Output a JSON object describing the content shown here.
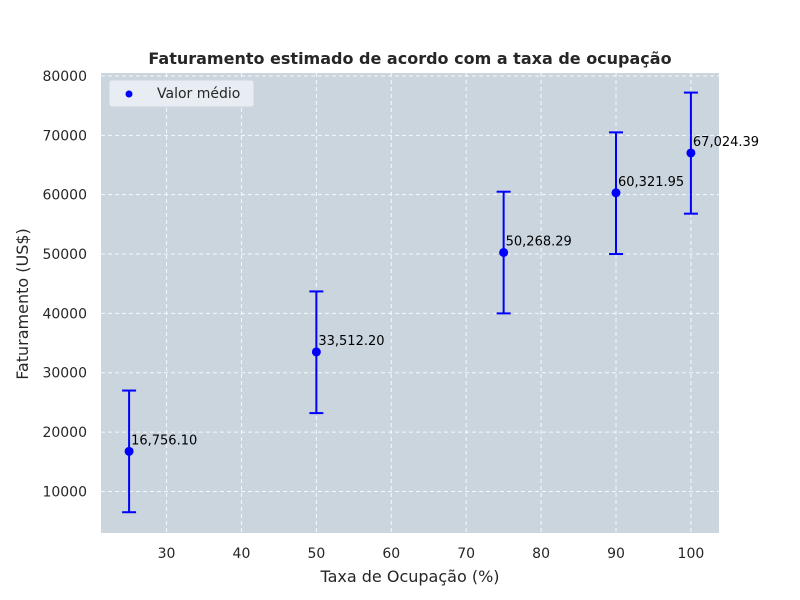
{
  "chart_data": {
    "type": "scatter",
    "title": "Faturamento estimado de acordo com a taxa de ocupação",
    "xlabel": "Taxa de Ocupação (%)",
    "ylabel": "Faturamento (US$)",
    "xlim": [
      21.25,
      103.75
    ],
    "ylim": [
      3000,
      80500
    ],
    "xticks": [
      30,
      40,
      50,
      60,
      70,
      80,
      90,
      100
    ],
    "yticks": [
      10000,
      20000,
      30000,
      40000,
      50000,
      60000,
      70000,
      80000
    ],
    "grid": true,
    "grid_style": "dashed",
    "plot_background": "#cad5de",
    "legend": {
      "position": "upper left",
      "entries": [
        "Valor médio"
      ]
    },
    "series": [
      {
        "name": "Valor médio",
        "color": "#0000ff",
        "points": [
          {
            "x": 25,
            "y": 16756.1,
            "ymin": 6500,
            "ymax": 27000,
            "label": "16,756.10"
          },
          {
            "x": 50,
            "y": 33512.2,
            "ymin": 23200,
            "ymax": 43700,
            "label": "33,512.20"
          },
          {
            "x": 75,
            "y": 50268.29,
            "ymin": 40000,
            "ymax": 60500,
            "label": "50,268.29"
          },
          {
            "x": 90,
            "y": 60321.95,
            "ymin": 50000,
            "ymax": 70500,
            "label": "60,321.95"
          },
          {
            "x": 100,
            "y": 67024.39,
            "ymin": 56800,
            "ymax": 77200,
            "label": "67,024.39"
          }
        ]
      }
    ]
  }
}
